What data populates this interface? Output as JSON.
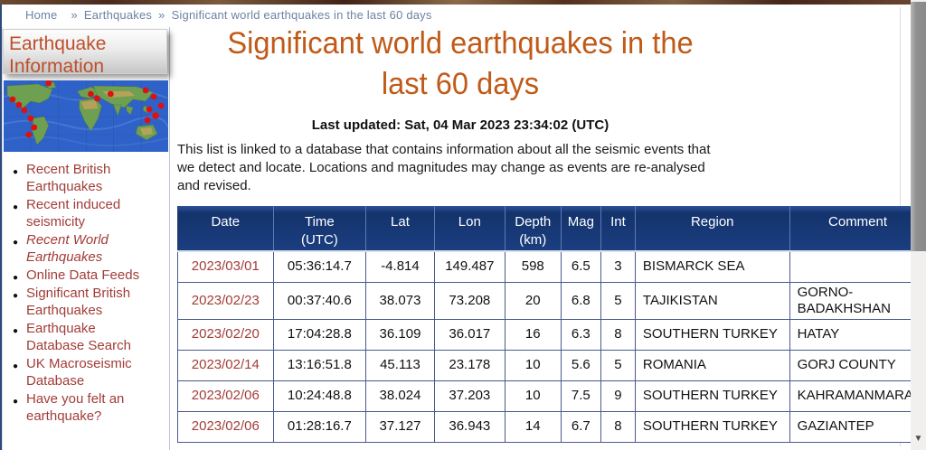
{
  "colors": {
    "title_accent": "#c05a18",
    "table_header_bg": "#1b3e80",
    "link_red": "#a23d38",
    "sidebar_title": "#bd4f2c",
    "breadcrumb_text": "#6d82a3",
    "cell_border": "#49598c",
    "map_dot": "#dd1111"
  },
  "breadcrumb": {
    "separator": "»",
    "items": [
      "Home",
      "Earthquakes",
      "Significant world earthquakes in the last 60 days"
    ]
  },
  "sidebar": {
    "title": "Earthquake Information",
    "links": [
      {
        "label": "Recent British Earthquakes",
        "current": false
      },
      {
        "label": "Recent induced seismicity",
        "current": false
      },
      {
        "label": "Recent World Earthquakes",
        "current": true
      },
      {
        "label": "Online Data Feeds",
        "current": false
      },
      {
        "label": "Significant British Earthquakes",
        "current": false
      },
      {
        "label": "Earthquake Database Search",
        "current": false
      },
      {
        "label": "UK Macroseismic Database",
        "current": false
      },
      {
        "label": "Have you felt an earthquake?",
        "current": false
      }
    ]
  },
  "main": {
    "title": "Significant world earthquakes in the last 60 days",
    "last_updated": "Last updated: Sat, 04 Mar 2023 23:34:02 (UTC)",
    "description": "This list is linked to a database that contains information about all the seismic events that we detect and locate. Locations and magnitudes may change as events are re-analysed and revised."
  },
  "table": {
    "headers": [
      {
        "label": "Date"
      },
      {
        "label": "Time",
        "sub": "(UTC)"
      },
      {
        "label": "Lat"
      },
      {
        "label": "Lon"
      },
      {
        "label": "Depth",
        "sub": "(km)"
      },
      {
        "label": "Mag"
      },
      {
        "label": "Int"
      },
      {
        "label": "Region"
      },
      {
        "label": "Comment"
      }
    ],
    "rows": [
      {
        "date": "2023/03/01",
        "time": "05:36:14.7",
        "lat": "-4.814",
        "lon": "149.487",
        "depth": "598",
        "mag": "6.5",
        "int": "3",
        "region": "BISMARCK SEA",
        "comment": ""
      },
      {
        "date": "2023/02/23",
        "time": "00:37:40.6",
        "lat": "38.073",
        "lon": "73.208",
        "depth": "20",
        "mag": "6.8",
        "int": "5",
        "region": "TAJIKISTAN",
        "comment": "GORNO-BADAKHSHAN"
      },
      {
        "date": "2023/02/20",
        "time": "17:04:28.8",
        "lat": "36.109",
        "lon": "36.017",
        "depth": "16",
        "mag": "6.3",
        "int": "8",
        "region": "SOUTHERN TURKEY",
        "comment": "HATAY"
      },
      {
        "date": "2023/02/14",
        "time": "13:16:51.8",
        "lat": "45.113",
        "lon": "23.178",
        "depth": "10",
        "mag": "5.6",
        "int": "5",
        "region": "ROMANIA",
        "comment": "GORJ COUNTY"
      },
      {
        "date": "2023/02/06",
        "time": "10:24:48.8",
        "lat": "38.024",
        "lon": "37.203",
        "depth": "10",
        "mag": "7.5",
        "int": "9",
        "region": "SOUTHERN TURKEY",
        "comment": "KAHRAMANMARAS"
      },
      {
        "date": "2023/02/06",
        "time": "01:28:16.7",
        "lat": "37.127",
        "lon": "36.943",
        "depth": "14",
        "mag": "6.7",
        "int": "8",
        "region": "SOUTHERN TURKEY",
        "comment": "GAZIANTEP"
      }
    ]
  },
  "scrollbar": {
    "down_arrow": "▼"
  }
}
